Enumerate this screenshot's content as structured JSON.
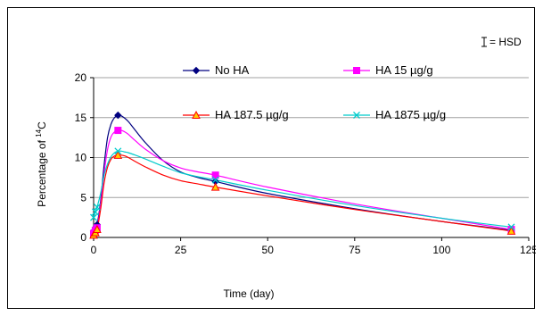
{
  "chart_data": {
    "type": "line",
    "title": "",
    "xlabel": "Time (day)",
    "ylabel_prefix": "Percentage of ",
    "ylabel_superscript": "14",
    "ylabel_suffix": "C",
    "xlim": [
      0,
      125
    ],
    "ylim": [
      0,
      20
    ],
    "xticks": [
      0,
      25,
      50,
      75,
      100,
      125
    ],
    "yticks": [
      0,
      5,
      10,
      15,
      20
    ],
    "grid": "horizontal",
    "legend_position": "top",
    "hsd_label": "= HSD",
    "series": [
      {
        "name": "No HA",
        "color": "#000080",
        "marker": "diamond",
        "x": [
          0,
          0.5,
          1,
          7,
          35,
          120
        ],
        "y": [
          0.8,
          1.2,
          1.6,
          15.3,
          7.0,
          0.9
        ],
        "curve_x": [
          0,
          0.5,
          1,
          2,
          3,
          4,
          5,
          6,
          7,
          8,
          9,
          10,
          12,
          15,
          20,
          25,
          30,
          35,
          50,
          75,
          100,
          120
        ],
        "curve_y": [
          0.8,
          1.2,
          1.6,
          4.5,
          9.0,
          12.5,
          14.2,
          15.0,
          15.3,
          15.2,
          14.9,
          14.5,
          13.4,
          11.8,
          9.6,
          8.2,
          7.5,
          7.0,
          5.5,
          3.6,
          2.0,
          0.9
        ]
      },
      {
        "name": "HA 15 µg/g",
        "color": "#ff00ff",
        "marker": "square",
        "x": [
          0,
          0.5,
          1,
          7,
          35,
          120
        ],
        "y": [
          0.5,
          0.9,
          1.2,
          13.4,
          7.8,
          1.0
        ],
        "curve_x": [
          0,
          0.5,
          1,
          2,
          3,
          4,
          5,
          6,
          7,
          8,
          9,
          10,
          12,
          15,
          20,
          25,
          30,
          35,
          50,
          75,
          100,
          120
        ],
        "curve_y": [
          0.5,
          0.9,
          1.2,
          4.0,
          8.0,
          11.0,
          12.6,
          13.2,
          13.4,
          13.4,
          13.2,
          12.9,
          12.1,
          11.0,
          9.6,
          8.7,
          8.2,
          7.8,
          6.3,
          4.2,
          2.4,
          1.0
        ]
      },
      {
        "name": "HA 187.5 µg/g",
        "color": "#ff0000",
        "marker": "triangle",
        "marker_fill": "#ffcc00",
        "x": [
          0,
          0.5,
          1,
          7,
          35,
          120
        ],
        "y": [
          0.3,
          0.6,
          1.0,
          10.3,
          6.3,
          0.8
        ],
        "curve_x": [
          0,
          0.5,
          1,
          2,
          3,
          4,
          5,
          6,
          7,
          8,
          9,
          10,
          12,
          15,
          20,
          25,
          30,
          35,
          50,
          75,
          100,
          120
        ],
        "curve_y": [
          0.3,
          0.6,
          1.0,
          3.5,
          6.8,
          8.8,
          9.8,
          10.2,
          10.3,
          10.3,
          10.2,
          10.0,
          9.5,
          8.8,
          7.8,
          7.1,
          6.7,
          6.3,
          5.2,
          3.5,
          2.0,
          0.8
        ]
      },
      {
        "name": "HA 1875 µg/g",
        "color": "#00cccc",
        "marker": "x",
        "x": [
          0,
          0.5,
          1,
          7,
          35,
          120
        ],
        "y": [
          2.5,
          3.2,
          3.8,
          10.8,
          7.2,
          1.3
        ],
        "curve_x": [
          0,
          0.5,
          1,
          2,
          3,
          4,
          5,
          6,
          7,
          8,
          9,
          10,
          12,
          15,
          20,
          25,
          30,
          35,
          50,
          75,
          100,
          120
        ],
        "curve_y": [
          2.5,
          3.2,
          3.8,
          5.5,
          7.8,
          9.2,
          10.1,
          10.6,
          10.8,
          10.8,
          10.7,
          10.6,
          10.3,
          9.8,
          8.9,
          8.1,
          7.6,
          7.2,
          5.9,
          4.0,
          2.4,
          1.3
        ]
      }
    ]
  }
}
